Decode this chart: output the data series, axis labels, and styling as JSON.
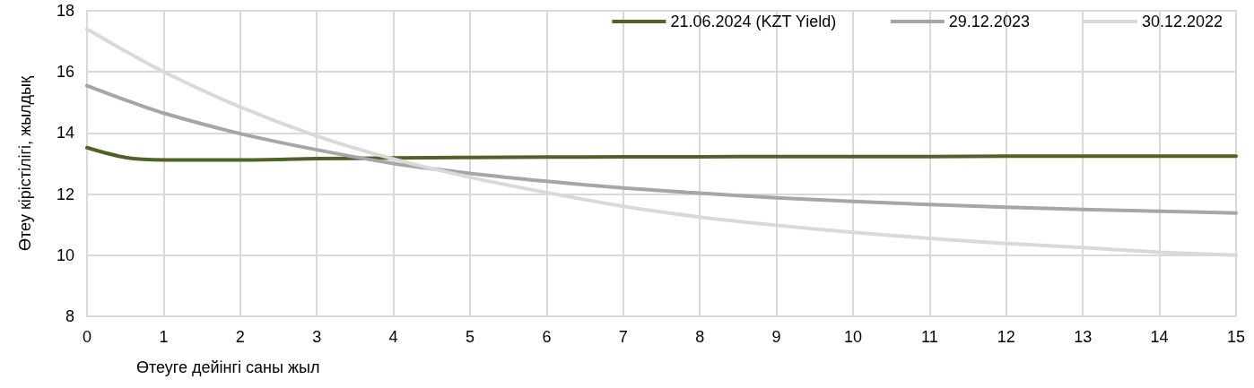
{
  "chart_data": {
    "type": "line",
    "xlabel": "Өтеуге дейінгі саны жыл",
    "ylabel": "Өтеу кірістілігі, жылдық",
    "x": [
      0,
      0.5,
      1,
      2,
      3,
      4,
      5,
      6,
      7,
      8,
      9,
      10,
      11,
      12,
      13,
      14,
      15
    ],
    "series": [
      {
        "name": "21.06.2024 (KZT Yield)",
        "color": "#4f6228",
        "values": [
          13.52,
          13.2,
          13.12,
          13.12,
          13.16,
          13.18,
          13.2,
          13.21,
          13.22,
          13.22,
          13.23,
          13.23,
          13.23,
          13.24,
          13.24,
          13.24,
          13.24
        ]
      },
      {
        "name": "29.12.2023",
        "color": "#a6a6a6",
        "values": [
          15.55,
          15.08,
          14.65,
          13.98,
          13.45,
          13.0,
          12.68,
          12.42,
          12.2,
          12.03,
          11.88,
          11.76,
          11.66,
          11.57,
          11.5,
          11.44,
          11.38
        ]
      },
      {
        "name": "30.12.2022",
        "color": "#d9d9d9",
        "values": [
          17.4,
          16.68,
          16.0,
          14.85,
          13.9,
          13.15,
          12.55,
          12.05,
          11.6,
          11.25,
          10.98,
          10.75,
          10.55,
          10.38,
          10.25,
          10.1,
          10.0
        ]
      }
    ],
    "xlim": [
      0,
      15
    ],
    "xticks": [
      0,
      1,
      2,
      3,
      4,
      5,
      6,
      7,
      8,
      9,
      10,
      11,
      12,
      13,
      14,
      15
    ],
    "ylim": [
      8,
      18
    ],
    "yticks": [
      8,
      10,
      12,
      14,
      16,
      18
    ],
    "grid": true,
    "legend": "top right",
    "marker": "none",
    "line_style": "solid"
  }
}
